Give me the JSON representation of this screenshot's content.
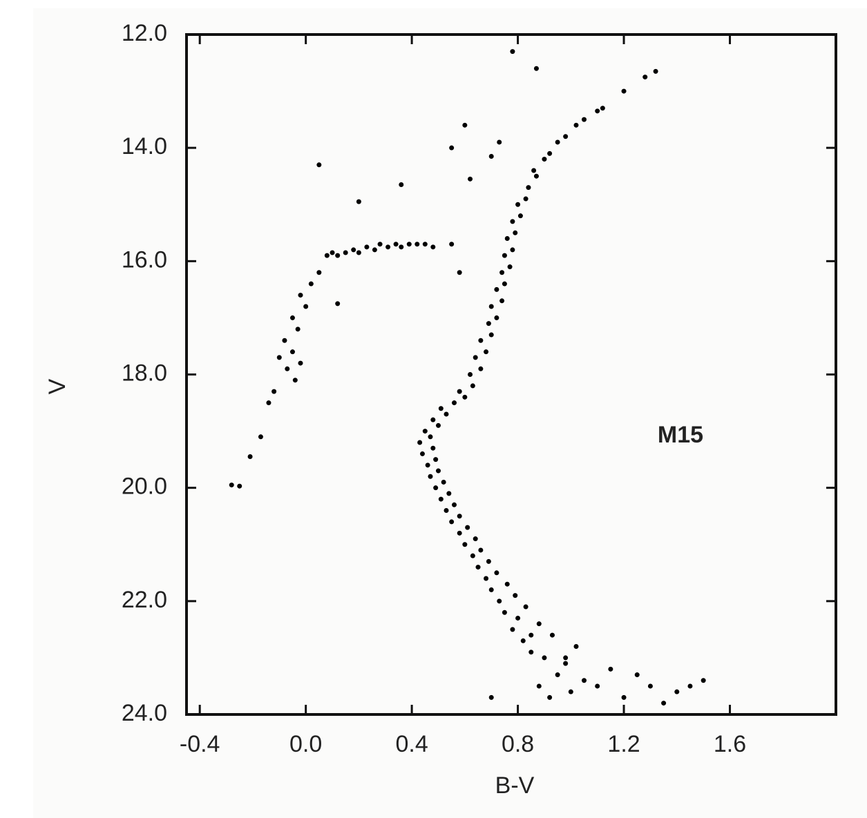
{
  "chart_data": {
    "type": "scatter",
    "annotation": "M15",
    "xlabel": "B-V",
    "ylabel": "V",
    "color": "#000000",
    "xlim": [
      -0.45,
      2.0
    ],
    "xticks": [
      -0.4,
      {
        "value": 0,
        "label": "0.0"
      },
      0.4,
      0.8,
      1.2,
      1.6
    ],
    "ylim": [
      24,
      12
    ],
    "yticks": [
      {
        "value": 12,
        "label": "12.0"
      },
      {
        "value": 14,
        "label": "14.0"
      },
      {
        "value": 16,
        "label": "16.0"
      },
      {
        "value": 18,
        "label": "18.0"
      },
      {
        "value": 20,
        "label": "20.0"
      },
      {
        "value": 22,
        "label": "22.0"
      },
      {
        "value": 24,
        "label": "24.0"
      }
    ],
    "x": [
      1.4,
      1.3,
      1.2,
      1.1,
      1.0,
      0.92,
      1.5,
      1.25,
      1.15,
      1.05,
      0.95,
      0.88,
      1.35,
      1.45,
      0.98,
      0.9,
      0.85,
      1.02,
      0.93,
      0.82,
      0.78,
      0.88,
      0.8,
      0.75,
      0.83,
      0.73,
      0.79,
      0.7,
      0.76,
      0.68,
      0.72,
      0.65,
      0.69,
      0.63,
      0.66,
      0.6,
      0.64,
      0.58,
      0.61,
      0.55,
      0.58,
      0.53,
      0.56,
      0.51,
      0.54,
      0.49,
      0.52,
      0.47,
      0.5,
      0.46,
      0.49,
      0.44,
      0.48,
      0.43,
      0.47,
      0.45,
      0.5,
      0.48,
      0.53,
      0.51,
      0.56,
      0.6,
      0.58,
      0.63,
      0.62,
      0.66,
      0.64,
      0.68,
      0.66,
      0.7,
      0.69,
      0.72,
      0.7,
      0.74,
      0.72,
      0.75,
      0.74,
      0.77,
      0.75,
      0.78,
      0.76,
      0.79,
      0.78,
      0.81,
      0.8,
      0.83,
      0.84,
      0.87,
      0.86,
      0.9,
      0.92,
      0.95,
      0.98,
      1.02,
      1.05,
      1.1,
      1.12,
      1.2,
      1.28,
      1.32,
      0.08,
      0.1,
      0.12,
      0.15,
      0.18,
      0.2,
      0.23,
      0.26,
      0.28,
      0.31,
      0.34,
      0.36,
      0.39,
      0.42,
      0.45,
      0.48,
      0.05,
      0.02,
      -0.02,
      0.0,
      -0.05,
      -0.03,
      -0.08,
      -0.05,
      -0.1,
      -0.02,
      -0.07,
      -0.04,
      -0.12,
      -0.14,
      -0.17,
      -0.21,
      -0.28,
      -0.25,
      0.12,
      0.05,
      0.2,
      0.36,
      0.6,
      0.55,
      0.7,
      0.78,
      0.87,
      0.73,
      0.62,
      0.55,
      0.58,
      0.85,
      0.98,
      0.7
    ],
    "values": [
      23.6,
      23.5,
      23.7,
      23.5,
      23.6,
      23.7,
      23.4,
      23.3,
      23.2,
      23.4,
      23.3,
      23.5,
      23.8,
      23.5,
      23.1,
      23.0,
      22.9,
      22.8,
      22.6,
      22.7,
      22.5,
      22.4,
      22.3,
      22.2,
      22.1,
      22.0,
      21.9,
      21.8,
      21.7,
      21.6,
      21.5,
      21.4,
      21.3,
      21.2,
      21.1,
      21.0,
      20.9,
      20.8,
      20.7,
      20.6,
      20.5,
      20.4,
      20.3,
      20.2,
      20.1,
      20.0,
      19.9,
      19.8,
      19.7,
      19.6,
      19.5,
      19.4,
      19.3,
      19.2,
      19.1,
      19.0,
      18.9,
      18.8,
      18.7,
      18.6,
      18.5,
      18.4,
      18.3,
      18.2,
      18.0,
      17.9,
      17.7,
      17.6,
      17.4,
      17.3,
      17.1,
      17.0,
      16.8,
      16.7,
      16.5,
      16.4,
      16.2,
      16.1,
      15.9,
      15.8,
      15.6,
      15.5,
      15.3,
      15.2,
      15.0,
      14.9,
      14.7,
      14.5,
      14.4,
      14.2,
      14.1,
      13.9,
      13.8,
      13.6,
      13.5,
      13.35,
      13.3,
      13.0,
      12.75,
      12.65,
      15.9,
      15.85,
      15.9,
      15.85,
      15.8,
      15.85,
      15.75,
      15.8,
      15.7,
      15.75,
      15.7,
      15.75,
      15.7,
      15.7,
      15.7,
      15.75,
      16.2,
      16.4,
      16.6,
      16.8,
      17.0,
      17.2,
      17.4,
      17.6,
      17.7,
      17.8,
      17.9,
      18.1,
      18.3,
      18.5,
      19.1,
      19.45,
      19.95,
      19.97,
      16.75,
      14.3,
      14.95,
      14.65,
      13.6,
      14.0,
      14.15,
      12.3,
      12.6,
      13.9,
      14.55,
      15.7,
      16.2,
      22.6,
      23.0,
      23.7
    ]
  }
}
